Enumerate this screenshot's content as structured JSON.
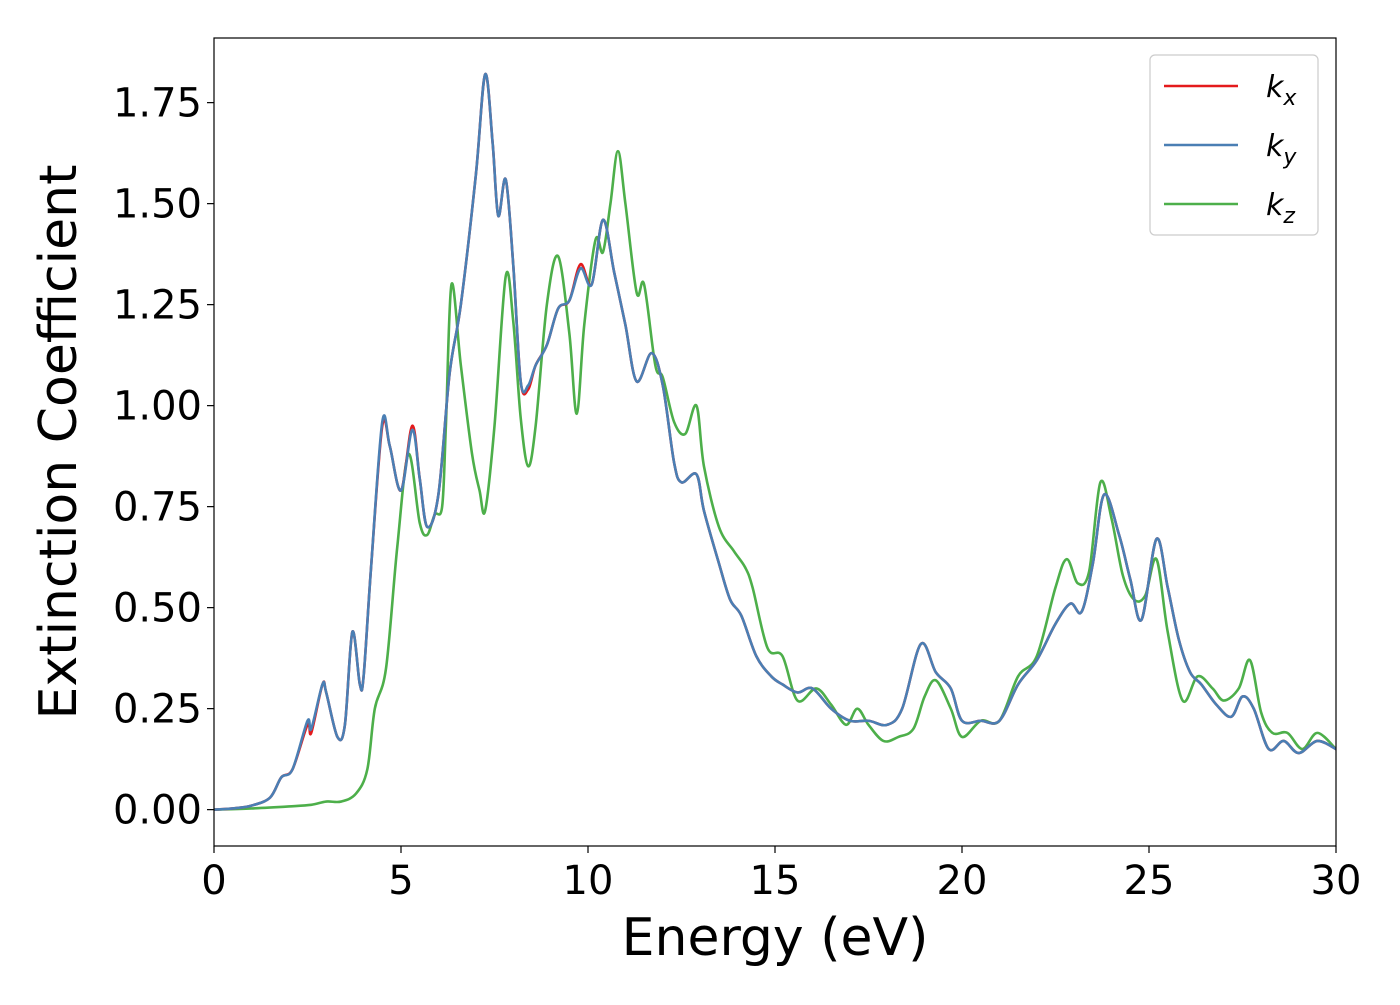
{
  "chart_data": {
    "type": "line",
    "title": "",
    "xlabel": "Energy (eV)",
    "ylabel": "Extinction Coefficient",
    "xlim": [
      0,
      30
    ],
    "ylim": [
      -0.09,
      1.91
    ],
    "xticks": [
      0,
      5,
      10,
      15,
      20,
      25,
      30
    ],
    "xtick_labels": [
      "0",
      "5",
      "10",
      "15",
      "20",
      "25",
      "30"
    ],
    "yticks": [
      0,
      0.25,
      0.5,
      0.75,
      1.0,
      1.25,
      1.5,
      1.75
    ],
    "ytick_labels": [
      "0.00",
      "0.25",
      "0.50",
      "0.75",
      "1.00",
      "1.25",
      "1.50",
      "1.75"
    ],
    "grid": false,
    "legend_position": "top-right",
    "series": [
      {
        "name": "k_x",
        "label_main": "k",
        "label_sub": "x",
        "color": "#e41a1c",
        "points": [
          [
            0,
            0
          ],
          [
            0.5,
            0.003
          ],
          [
            1.0,
            0.01
          ],
          [
            1.5,
            0.03
          ],
          [
            1.8,
            0.08
          ],
          [
            2.1,
            0.1
          ],
          [
            2.5,
            0.21
          ],
          [
            2.6,
            0.19
          ],
          [
            2.9,
            0.31
          ],
          [
            3.0,
            0.29
          ],
          [
            3.3,
            0.18
          ],
          [
            3.5,
            0.21
          ],
          [
            3.7,
            0.44
          ],
          [
            3.9,
            0.31
          ],
          [
            4.0,
            0.33
          ],
          [
            4.2,
            0.6
          ],
          [
            4.5,
            0.95
          ],
          [
            4.7,
            0.9
          ],
          [
            5.0,
            0.79
          ],
          [
            5.3,
            0.95
          ],
          [
            5.5,
            0.82
          ],
          [
            5.7,
            0.7
          ],
          [
            6.0,
            0.78
          ],
          [
            6.3,
            1.08
          ],
          [
            6.6,
            1.25
          ],
          [
            7.0,
            1.57
          ],
          [
            7.25,
            1.82
          ],
          [
            7.45,
            1.65
          ],
          [
            7.6,
            1.47
          ],
          [
            7.8,
            1.56
          ],
          [
            8.0,
            1.35
          ],
          [
            8.2,
            1.06
          ],
          [
            8.4,
            1.04
          ],
          [
            8.6,
            1.1
          ],
          [
            8.9,
            1.15
          ],
          [
            9.2,
            1.24
          ],
          [
            9.5,
            1.26
          ],
          [
            9.8,
            1.35
          ],
          [
            10.1,
            1.3
          ],
          [
            10.4,
            1.46
          ],
          [
            10.7,
            1.33
          ],
          [
            11.0,
            1.2
          ],
          [
            11.3,
            1.06
          ],
          [
            11.7,
            1.13
          ],
          [
            12.0,
            1.05
          ],
          [
            12.3,
            0.86
          ],
          [
            12.5,
            0.81
          ],
          [
            12.9,
            0.83
          ],
          [
            13.1,
            0.74
          ],
          [
            13.5,
            0.61
          ],
          [
            13.8,
            0.52
          ],
          [
            14.1,
            0.48
          ],
          [
            14.5,
            0.38
          ],
          [
            14.9,
            0.33
          ],
          [
            15.2,
            0.31
          ],
          [
            15.6,
            0.29
          ],
          [
            16.0,
            0.3
          ],
          [
            16.5,
            0.25
          ],
          [
            17.0,
            0.22
          ],
          [
            17.5,
            0.22
          ],
          [
            18.0,
            0.21
          ],
          [
            18.4,
            0.25
          ],
          [
            18.9,
            0.41
          ],
          [
            19.3,
            0.34
          ],
          [
            19.7,
            0.3
          ],
          [
            20.0,
            0.22
          ],
          [
            20.5,
            0.22
          ],
          [
            21.0,
            0.22
          ],
          [
            21.5,
            0.31
          ],
          [
            22.0,
            0.37
          ],
          [
            22.5,
            0.46
          ],
          [
            22.9,
            0.51
          ],
          [
            23.2,
            0.49
          ],
          [
            23.5,
            0.61
          ],
          [
            23.8,
            0.78
          ],
          [
            24.2,
            0.68
          ],
          [
            24.5,
            0.57
          ],
          [
            24.8,
            0.47
          ],
          [
            25.2,
            0.67
          ],
          [
            25.5,
            0.55
          ],
          [
            25.8,
            0.42
          ],
          [
            26.1,
            0.34
          ],
          [
            26.4,
            0.31
          ],
          [
            26.8,
            0.26
          ],
          [
            27.2,
            0.23
          ],
          [
            27.5,
            0.28
          ],
          [
            27.8,
            0.25
          ],
          [
            28.2,
            0.15
          ],
          [
            28.6,
            0.17
          ],
          [
            29.0,
            0.14
          ],
          [
            29.5,
            0.17
          ],
          [
            30.0,
            0.15
          ]
        ]
      },
      {
        "name": "k_y",
        "label_main": "k",
        "label_sub": "y",
        "color": "#4a7fb4",
        "points": [
          [
            0,
            0
          ],
          [
            0.5,
            0.003
          ],
          [
            1.0,
            0.01
          ],
          [
            1.5,
            0.03
          ],
          [
            1.8,
            0.08
          ],
          [
            2.1,
            0.1
          ],
          [
            2.5,
            0.22
          ],
          [
            2.6,
            0.2
          ],
          [
            2.9,
            0.31
          ],
          [
            3.0,
            0.29
          ],
          [
            3.3,
            0.18
          ],
          [
            3.5,
            0.21
          ],
          [
            3.7,
            0.44
          ],
          [
            3.9,
            0.31
          ],
          [
            4.0,
            0.33
          ],
          [
            4.2,
            0.6
          ],
          [
            4.5,
            0.96
          ],
          [
            4.7,
            0.9
          ],
          [
            5.0,
            0.79
          ],
          [
            5.3,
            0.94
          ],
          [
            5.5,
            0.82
          ],
          [
            5.7,
            0.7
          ],
          [
            6.0,
            0.78
          ],
          [
            6.3,
            1.08
          ],
          [
            6.6,
            1.25
          ],
          [
            7.0,
            1.57
          ],
          [
            7.25,
            1.82
          ],
          [
            7.45,
            1.65
          ],
          [
            7.6,
            1.47
          ],
          [
            7.8,
            1.56
          ],
          [
            8.0,
            1.35
          ],
          [
            8.2,
            1.06
          ],
          [
            8.4,
            1.05
          ],
          [
            8.6,
            1.1
          ],
          [
            8.9,
            1.15
          ],
          [
            9.2,
            1.24
          ],
          [
            9.5,
            1.26
          ],
          [
            9.8,
            1.34
          ],
          [
            10.1,
            1.3
          ],
          [
            10.4,
            1.46
          ],
          [
            10.7,
            1.33
          ],
          [
            11.0,
            1.2
          ],
          [
            11.3,
            1.06
          ],
          [
            11.7,
            1.13
          ],
          [
            12.0,
            1.05
          ],
          [
            12.3,
            0.86
          ],
          [
            12.5,
            0.81
          ],
          [
            12.9,
            0.83
          ],
          [
            13.1,
            0.74
          ],
          [
            13.5,
            0.61
          ],
          [
            13.8,
            0.52
          ],
          [
            14.1,
            0.48
          ],
          [
            14.5,
            0.38
          ],
          [
            14.9,
            0.33
          ],
          [
            15.2,
            0.31
          ],
          [
            15.6,
            0.29
          ],
          [
            16.0,
            0.3
          ],
          [
            16.5,
            0.25
          ],
          [
            17.0,
            0.22
          ],
          [
            17.5,
            0.22
          ],
          [
            18.0,
            0.21
          ],
          [
            18.4,
            0.25
          ],
          [
            18.9,
            0.41
          ],
          [
            19.3,
            0.34
          ],
          [
            19.7,
            0.3
          ],
          [
            20.0,
            0.22
          ],
          [
            20.5,
            0.22
          ],
          [
            21.0,
            0.22
          ],
          [
            21.5,
            0.31
          ],
          [
            22.0,
            0.37
          ],
          [
            22.5,
            0.46
          ],
          [
            22.9,
            0.51
          ],
          [
            23.2,
            0.49
          ],
          [
            23.5,
            0.61
          ],
          [
            23.8,
            0.78
          ],
          [
            24.2,
            0.68
          ],
          [
            24.5,
            0.57
          ],
          [
            24.8,
            0.47
          ],
          [
            25.2,
            0.67
          ],
          [
            25.5,
            0.55
          ],
          [
            25.8,
            0.42
          ],
          [
            26.1,
            0.34
          ],
          [
            26.4,
            0.31
          ],
          [
            26.8,
            0.26
          ],
          [
            27.2,
            0.23
          ],
          [
            27.5,
            0.28
          ],
          [
            27.8,
            0.25
          ],
          [
            28.2,
            0.15
          ],
          [
            28.6,
            0.17
          ],
          [
            29.0,
            0.14
          ],
          [
            29.5,
            0.17
          ],
          [
            30.0,
            0.15
          ]
        ]
      },
      {
        "name": "k_z",
        "label_main": "k",
        "label_sub": "z",
        "color": "#4daf4a",
        "points": [
          [
            0,
            0
          ],
          [
            1.0,
            0.003
          ],
          [
            2.0,
            0.008
          ],
          [
            2.6,
            0.012
          ],
          [
            3.0,
            0.02
          ],
          [
            3.4,
            0.02
          ],
          [
            3.8,
            0.04
          ],
          [
            4.1,
            0.1
          ],
          [
            4.3,
            0.25
          ],
          [
            4.6,
            0.35
          ],
          [
            4.9,
            0.65
          ],
          [
            5.2,
            0.88
          ],
          [
            5.5,
            0.71
          ],
          [
            5.7,
            0.68
          ],
          [
            5.9,
            0.73
          ],
          [
            6.1,
            0.75
          ],
          [
            6.2,
            0.95
          ],
          [
            6.35,
            1.3
          ],
          [
            6.6,
            1.1
          ],
          [
            6.9,
            0.88
          ],
          [
            7.1,
            0.79
          ],
          [
            7.25,
            0.74
          ],
          [
            7.5,
            0.95
          ],
          [
            7.8,
            1.32
          ],
          [
            8.0,
            1.21
          ],
          [
            8.2,
            0.97
          ],
          [
            8.4,
            0.85
          ],
          [
            8.6,
            0.95
          ],
          [
            8.9,
            1.25
          ],
          [
            9.2,
            1.37
          ],
          [
            9.5,
            1.18
          ],
          [
            9.7,
            0.98
          ],
          [
            9.9,
            1.2
          ],
          [
            10.2,
            1.41
          ],
          [
            10.4,
            1.38
          ],
          [
            10.6,
            1.5
          ],
          [
            10.8,
            1.63
          ],
          [
            11.0,
            1.5
          ],
          [
            11.3,
            1.28
          ],
          [
            11.5,
            1.3
          ],
          [
            11.8,
            1.1
          ],
          [
            12.0,
            1.07
          ],
          [
            12.3,
            0.96
          ],
          [
            12.6,
            0.93
          ],
          [
            12.9,
            1.0
          ],
          [
            13.1,
            0.85
          ],
          [
            13.5,
            0.7
          ],
          [
            13.9,
            0.64
          ],
          [
            14.2,
            0.6
          ],
          [
            14.4,
            0.55
          ],
          [
            14.8,
            0.4
          ],
          [
            15.2,
            0.38
          ],
          [
            15.6,
            0.27
          ],
          [
            16.1,
            0.3
          ],
          [
            16.5,
            0.26
          ],
          [
            16.9,
            0.21
          ],
          [
            17.2,
            0.25
          ],
          [
            17.5,
            0.21
          ],
          [
            17.9,
            0.17
          ],
          [
            18.3,
            0.18
          ],
          [
            18.7,
            0.2
          ],
          [
            19.0,
            0.28
          ],
          [
            19.3,
            0.32
          ],
          [
            19.7,
            0.25
          ],
          [
            20.0,
            0.18
          ],
          [
            20.5,
            0.22
          ],
          [
            21.0,
            0.22
          ],
          [
            21.5,
            0.33
          ],
          [
            22.0,
            0.38
          ],
          [
            22.5,
            0.55
          ],
          [
            22.8,
            0.62
          ],
          [
            23.1,
            0.56
          ],
          [
            23.4,
            0.59
          ],
          [
            23.7,
            0.81
          ],
          [
            24.0,
            0.72
          ],
          [
            24.3,
            0.58
          ],
          [
            24.6,
            0.52
          ],
          [
            24.9,
            0.53
          ],
          [
            25.2,
            0.62
          ],
          [
            25.5,
            0.44
          ],
          [
            25.9,
            0.27
          ],
          [
            26.3,
            0.33
          ],
          [
            26.7,
            0.3
          ],
          [
            27.0,
            0.27
          ],
          [
            27.4,
            0.3
          ],
          [
            27.7,
            0.37
          ],
          [
            28.0,
            0.24
          ],
          [
            28.3,
            0.19
          ],
          [
            28.7,
            0.19
          ],
          [
            29.1,
            0.15
          ],
          [
            29.5,
            0.19
          ],
          [
            30.0,
            0.15
          ]
        ]
      }
    ]
  }
}
